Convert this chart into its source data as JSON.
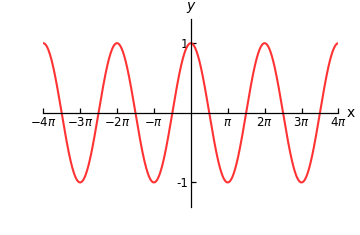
{
  "xmin_mult": -4,
  "xmax_mult": 4,
  "ymin": -1.35,
  "ymax": 1.35,
  "line_color": "#FF3333",
  "line_width": 1.5,
  "background_color": "#FFFFFF",
  "xtick_multiples": [
    -4,
    -3,
    -2,
    -1,
    1,
    2,
    3,
    4
  ],
  "yticks": [
    -1,
    1
  ],
  "xlabel": "x",
  "ylabel": "y",
  "axis_color": "#000000",
  "tick_fontsize": 8.5,
  "label_fontsize": 10
}
